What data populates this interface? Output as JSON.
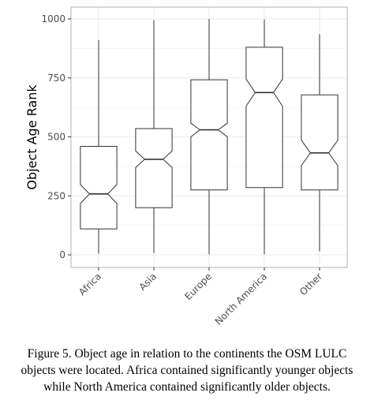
{
  "chart_data": {
    "type": "boxplot",
    "title": "",
    "xlabel": "",
    "ylabel": "Object Age Rank",
    "ylim": [
      0,
      1000
    ],
    "yticks": [
      0,
      250,
      500,
      750,
      1000
    ],
    "grid": true,
    "categories": [
      "Africa",
      "Asia",
      "Europe",
      "North America",
      "Other"
    ],
    "boxes": [
      {
        "category": "Africa",
        "min": 5,
        "q1": 110,
        "median": 258,
        "q3": 460,
        "max": 910,
        "notch_low": 218,
        "notch_high": 298
      },
      {
        "category": "Asia",
        "min": 8,
        "q1": 200,
        "median": 405,
        "q3": 535,
        "max": 995,
        "notch_low": 370,
        "notch_high": 440
      },
      {
        "category": "Europe",
        "min": 2,
        "q1": 275,
        "median": 530,
        "q3": 742,
        "max": 1000,
        "notch_low": 500,
        "notch_high": 558
      },
      {
        "category": "North America",
        "min": 2,
        "q1": 285,
        "median": 688,
        "q3": 880,
        "max": 998,
        "notch_low": 630,
        "notch_high": 745
      },
      {
        "category": "Other",
        "min": 15,
        "q1": 275,
        "median": 432,
        "q3": 678,
        "max": 935,
        "notch_low": 378,
        "notch_high": 486
      }
    ]
  },
  "caption": "Figure 5. Object age in relation to the continents the OSM LULC objects were located. Africa contained significantly younger objects while North America contained significantly older objects.",
  "colors": {
    "panel_border": "#b3b3b3",
    "grid": "#ebebeb",
    "box_stroke": "#333333"
  }
}
